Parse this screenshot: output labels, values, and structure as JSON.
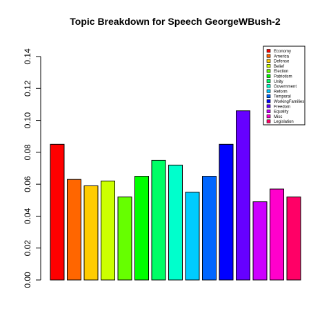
{
  "chart_data": {
    "type": "bar",
    "title": "Topic Breakdown for Speech GeorgeWBush-2",
    "xlabel": "",
    "ylabel": "",
    "ylim": [
      0,
      0.14
    ],
    "yticks": [
      "0.00",
      "0.02",
      "0.04",
      "0.06",
      "0.08",
      "0.10",
      "0.12",
      "0.14"
    ],
    "grid": false,
    "legend_position": "top-right",
    "categories": [
      "Economy",
      "America",
      "Defense",
      "Belief",
      "Election",
      "Patriotism",
      "Unity",
      "Government",
      "Reform",
      "Temporal",
      "WorkingFamilies",
      "Freedom",
      "Equality",
      "Misc",
      "Legislation"
    ],
    "values": [
      0.085,
      0.063,
      0.059,
      0.062,
      0.052,
      0.065,
      0.075,
      0.072,
      0.055,
      0.065,
      0.085,
      0.106,
      0.049,
      0.057,
      0.052
    ],
    "colors": [
      "#FF0000",
      "#FF6600",
      "#FFCC00",
      "#CCFF00",
      "#66FF00",
      "#00FF00",
      "#00FF66",
      "#00FFCC",
      "#00CCFF",
      "#0066FF",
      "#0000FF",
      "#6600FF",
      "#CC00FF",
      "#FF00CC",
      "#FF0066"
    ]
  }
}
